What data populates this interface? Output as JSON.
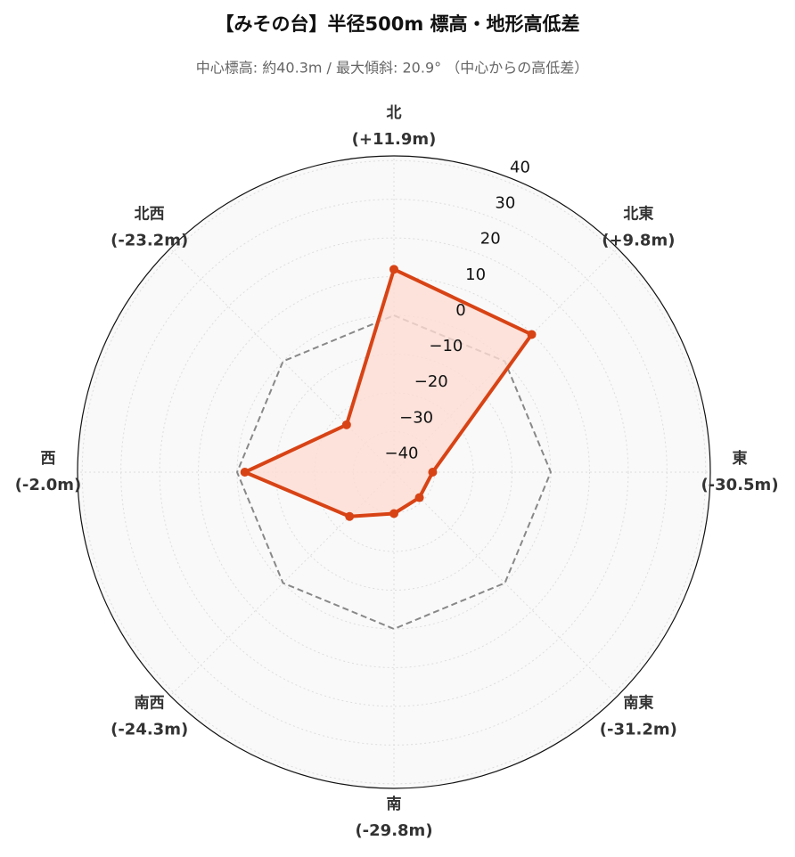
{
  "chart_data": {
    "type": "radar",
    "title": "【みその台】半径500m 標高・地形高低差",
    "subtitle": "中心標高: 約40.3m / 最大傾斜: 20.9° （中心からの高低差）",
    "categories": [
      "北",
      "北東",
      "東",
      "南東",
      "南",
      "南西",
      "西",
      "北西"
    ],
    "values": [
      11.9,
      9.8,
      -30.5,
      -31.2,
      -29.8,
      -24.3,
      -2.0,
      -23.2
    ],
    "value_labels": [
      "(+11.9m)",
      "(+9.8m)",
      "(-30.5m)",
      "(-31.2m)",
      "(-29.8m)",
      "(-24.3m)",
      "(-2.0m)",
      "(-23.2m)"
    ],
    "color": "#d84315",
    "fill_color": "#fcdcd2",
    "reference_line": 0,
    "ylim": [
      -40.5,
      41.2
    ],
    "yticks": [
      {
        "value": -40,
        "label": "−40"
      },
      {
        "value": -30,
        "label": "−30"
      },
      {
        "value": -20,
        "label": "−20"
      },
      {
        "value": -10,
        "label": "−10"
      },
      0,
      10,
      20,
      30,
      40
    ],
    "grid": true
  }
}
